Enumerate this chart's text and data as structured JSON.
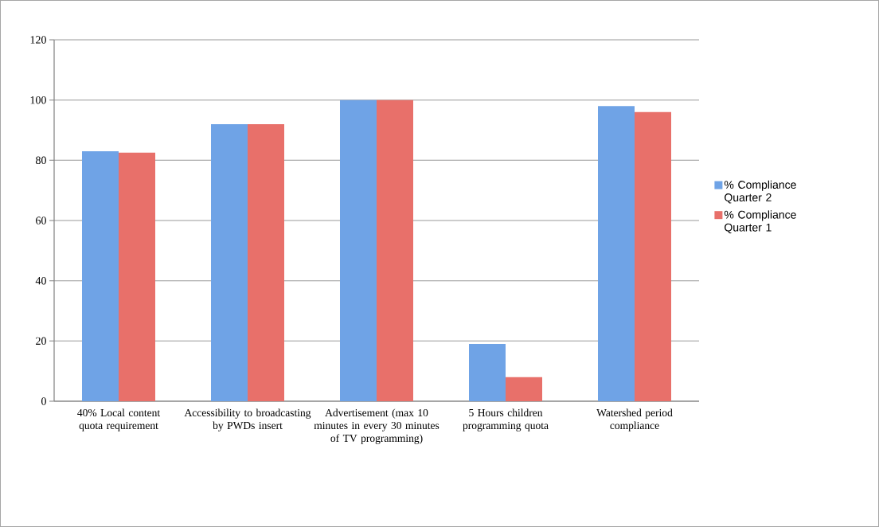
{
  "chart_data": {
    "type": "bar",
    "categories": [
      "40% Local content quota requirement",
      "Accessibility to broadcasting by PWDs insert",
      "Advertisement (max 10 minutes in every 30 minutes of TV programming)",
      "5 Hours children programming quota",
      "Watershed period compliance"
    ],
    "series": [
      {
        "name": "% Compliance Quarter 2",
        "color": "#6fa3e6",
        "values": [
          83,
          92,
          100,
          19,
          98
        ]
      },
      {
        "name": "% Compliance Quarter 1",
        "color": "#e8706a",
        "values": [
          82.5,
          92,
          100,
          8,
          96
        ]
      }
    ],
    "ylim": [
      0,
      120
    ],
    "yticks": [
      0,
      20,
      40,
      60,
      80,
      100,
      120
    ],
    "grid": "y",
    "legend": "right"
  }
}
